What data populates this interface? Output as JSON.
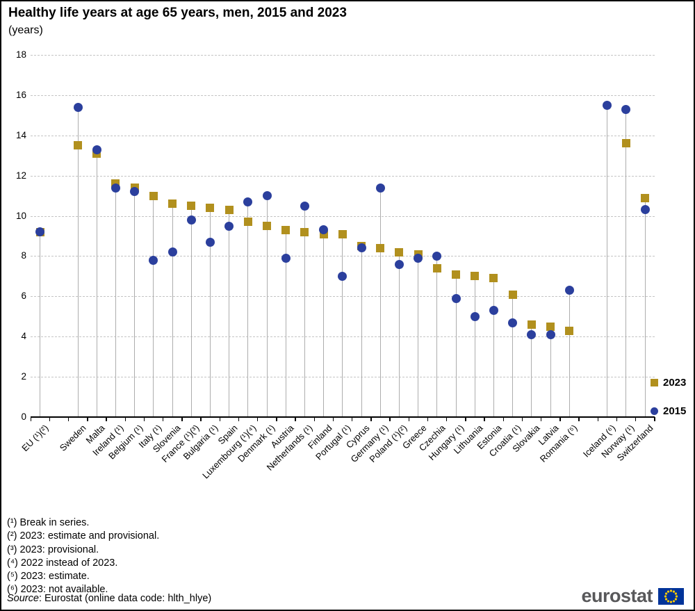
{
  "source": {
    "label": "Source",
    "rest": ": Eurostat (online data code: hlth_hlye)"
  },
  "logo": {
    "text": "eurostat",
    "flag_blue": "#003399",
    "flag_star_yellow": "#ffcc00"
  },
  "footnotes": [
    "(¹) Break in series.",
    "(²) 2023: estimate and provisional.",
    "(³) 2023: provisional.",
    "(⁴) 2022 instead of 2023.",
    "(⁵) 2023: estimate.",
    "(⁶) 2023: not available."
  ],
  "chart_data": {
    "type": "scatter",
    "title": "Healthy life years at age 65 years, men, 2015 and 2023",
    "subtitle": "(years)",
    "ylabel": "years",
    "ylim": [
      0,
      18
    ],
    "ytick_step": 2,
    "grid": "horizontal-dashed",
    "legend_position": "right",
    "categories": [
      "EU (¹)(²)",
      "",
      "Sweden",
      "Malta",
      "Ireland (¹)",
      "Belgium (¹)",
      "Italy (¹)",
      "Slovenia",
      "France (¹)(³)",
      "Bulgaria (¹)",
      "Spain",
      "Luxembourg (¹)(⁴)",
      "Denmark (¹)",
      "Austria",
      "Netherlands (¹)",
      "Finland",
      "Portugal (¹)",
      "Cyprus",
      "Germany (¹)",
      "Poland (¹)(²)",
      "Greece",
      "Czechia",
      "Hungary (¹)",
      "Lithuania",
      "Estonia",
      "Croatia (¹)",
      "Slovakia",
      "Latvia",
      "Romania (⁵)",
      "",
      "Iceland (⁶)",
      "Norway (¹)",
      "Switzerland"
    ],
    "series": [
      {
        "name": "2023",
        "marker": "square",
        "color": "#B1901E",
        "values": [
          9.2,
          null,
          13.5,
          13.1,
          11.6,
          11.4,
          11.0,
          10.6,
          10.5,
          10.4,
          10.3,
          9.7,
          9.5,
          9.3,
          9.2,
          9.1,
          9.1,
          8.5,
          8.4,
          8.2,
          8.1,
          7.4,
          7.1,
          7.0,
          6.9,
          6.1,
          4.6,
          4.5,
          4.3,
          null,
          null,
          13.6,
          10.9
        ]
      },
      {
        "name": "2015",
        "marker": "circle",
        "color": "#2B3F9D",
        "values": [
          9.2,
          null,
          15.4,
          13.3,
          11.4,
          11.2,
          7.8,
          8.2,
          9.8,
          8.7,
          9.5,
          10.7,
          11.0,
          7.9,
          10.5,
          9.3,
          7.0,
          8.4,
          11.4,
          7.6,
          7.9,
          8.0,
          5.9,
          5.0,
          5.3,
          4.7,
          4.1,
          4.1,
          6.3,
          null,
          15.5,
          15.3,
          10.3
        ]
      }
    ]
  }
}
